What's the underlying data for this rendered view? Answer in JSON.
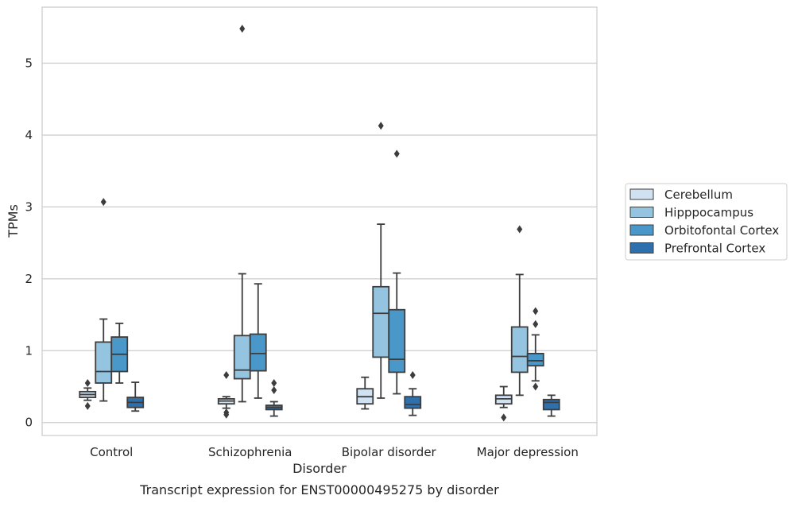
{
  "chart_data": {
    "type": "boxplot",
    "caption": "Transcript expression for ENST00000495275 by disorder",
    "xlabel": "Disorder",
    "ylabel": "TPMs",
    "ylim": [
      -0.18,
      5.78
    ],
    "yticks": [
      "0",
      "1",
      "2",
      "3",
      "4",
      "5"
    ],
    "categories": [
      "Control",
      "Schizophrenia",
      "Bipolar disorder",
      "Major depression"
    ],
    "grid": true,
    "legend_position": "right",
    "series": [
      {
        "name": "Cerebellum",
        "color": "#d0e1f2",
        "boxes": [
          {
            "whislo": 0.31,
            "q1": 0.35,
            "med": 0.39,
            "q3": 0.43,
            "whishi": 0.48,
            "fliers": [
              0.55,
              0.23
            ]
          },
          {
            "whislo": 0.2,
            "q1": 0.26,
            "med": 0.3,
            "q3": 0.33,
            "whishi": 0.36,
            "fliers": [
              0.66,
              0.14,
              0.11
            ]
          },
          {
            "whislo": 0.19,
            "q1": 0.26,
            "med": 0.36,
            "q3": 0.47,
            "whishi": 0.63,
            "fliers": []
          },
          {
            "whislo": 0.21,
            "q1": 0.26,
            "med": 0.33,
            "q3": 0.38,
            "whishi": 0.5,
            "fliers": [
              0.07
            ]
          }
        ]
      },
      {
        "name": "Hipppocampus",
        "color": "#94c4df",
        "boxes": [
          {
            "whislo": 0.3,
            "q1": 0.55,
            "med": 0.71,
            "q3": 1.12,
            "whishi": 1.44,
            "fliers": [
              3.07
            ]
          },
          {
            "whislo": 0.29,
            "q1": 0.61,
            "med": 0.73,
            "q3": 1.21,
            "whishi": 2.07,
            "fliers": [
              5.48
            ]
          },
          {
            "whislo": 0.34,
            "q1": 0.91,
            "med": 1.52,
            "q3": 1.89,
            "whishi": 2.76,
            "fliers": [
              4.13
            ]
          },
          {
            "whislo": 0.38,
            "q1": 0.7,
            "med": 0.92,
            "q3": 1.33,
            "whishi": 2.06,
            "fliers": [
              2.69
            ]
          }
        ]
      },
      {
        "name": "Orbitofontal Cortex",
        "color": "#4a98c9",
        "boxes": [
          {
            "whislo": 0.55,
            "q1": 0.71,
            "med": 0.95,
            "q3": 1.19,
            "whishi": 1.38,
            "fliers": []
          },
          {
            "whislo": 0.34,
            "q1": 0.72,
            "med": 0.96,
            "q3": 1.23,
            "whishi": 1.93,
            "fliers": []
          },
          {
            "whislo": 0.4,
            "q1": 0.7,
            "med": 0.88,
            "q3": 1.57,
            "whishi": 2.08,
            "fliers": [
              3.74
            ]
          },
          {
            "whislo": 0.58,
            "q1": 0.79,
            "med": 0.86,
            "q3": 0.96,
            "whishi": 1.22,
            "fliers": [
              1.55,
              1.37,
              0.5
            ]
          }
        ]
      },
      {
        "name": "Prefrontal Cortex",
        "color": "#2e6fad",
        "boxes": [
          {
            "whislo": 0.16,
            "q1": 0.21,
            "med": 0.28,
            "q3": 0.35,
            "whishi": 0.56,
            "fliers": []
          },
          {
            "whislo": 0.09,
            "q1": 0.18,
            "med": 0.21,
            "q3": 0.24,
            "whishi": 0.29,
            "fliers": [
              0.55,
              0.45
            ]
          },
          {
            "whislo": 0.1,
            "q1": 0.2,
            "med": 0.25,
            "q3": 0.36,
            "whishi": 0.47,
            "fliers": [
              0.66
            ]
          },
          {
            "whislo": 0.09,
            "q1": 0.18,
            "med": 0.28,
            "q3": 0.32,
            "whishi": 0.38,
            "fliers": []
          }
        ]
      }
    ]
  }
}
